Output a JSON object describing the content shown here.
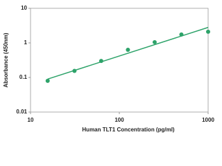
{
  "chart_data": {
    "type": "scatter",
    "x_label": "Human TLT1 Concentration (pg/ml)",
    "y_label": "Absorbance (450nm)",
    "x_log": true,
    "y_log": true,
    "xlim": [
      10,
      1000
    ],
    "xticks": [
      10,
      100,
      1000
    ],
    "ylim": [
      0.01,
      10
    ],
    "yticks": [
      0.01,
      0.1,
      1,
      10
    ],
    "points": {
      "color": "#2ea36a",
      "x": [
        15.6,
        31.25,
        62.5,
        125,
        250,
        500,
        1000
      ],
      "values": [
        0.08,
        0.155,
        0.3,
        0.63,
        1.05,
        1.75,
        2.1
      ]
    },
    "fit_line": {
      "color": "#2ea36a",
      "x": [
        15.6,
        1000
      ],
      "values": [
        0.09,
        2.8
      ]
    }
  }
}
